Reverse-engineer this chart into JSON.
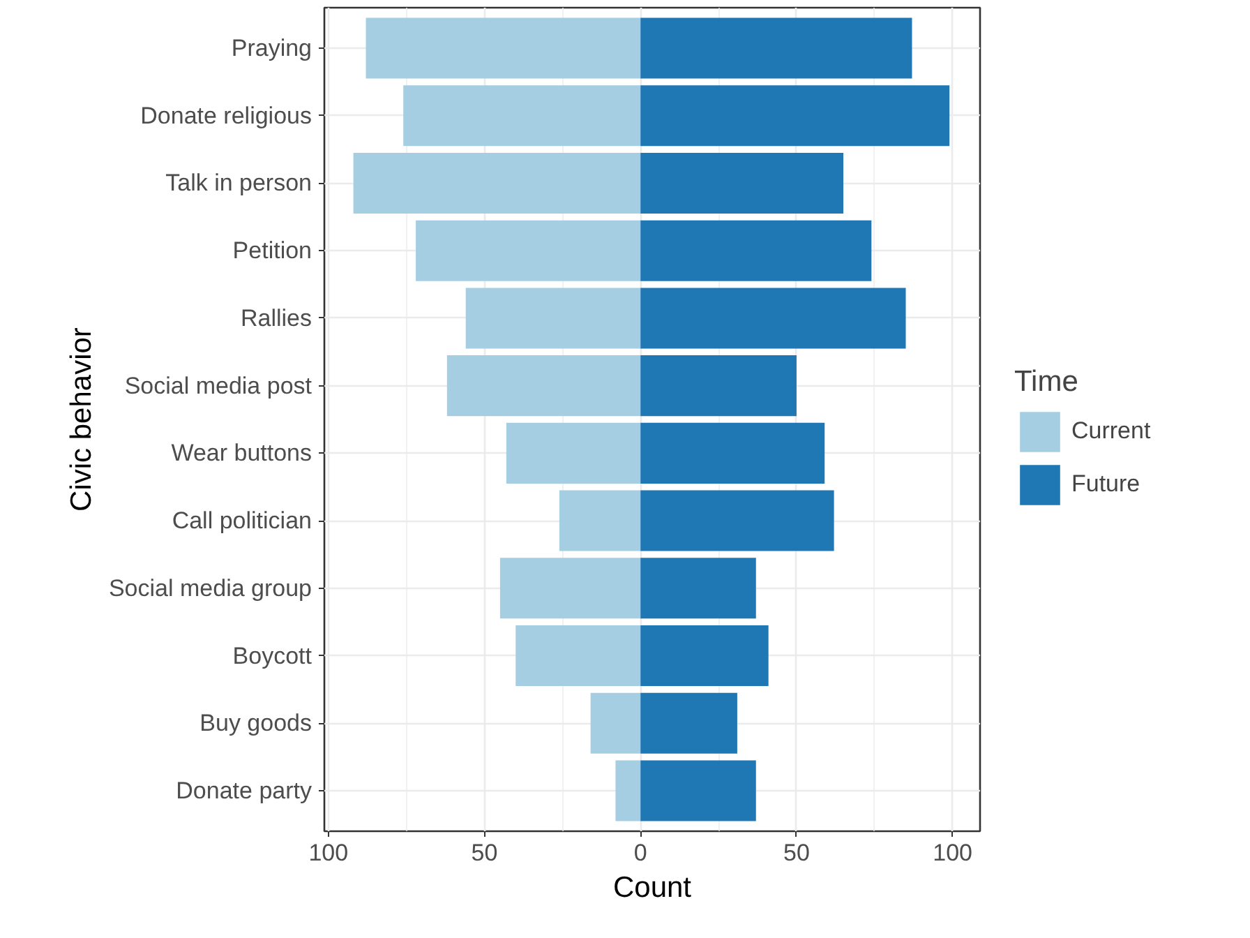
{
  "chart_data": {
    "type": "bar",
    "orientation": "horizontal",
    "stacked": true,
    "xlabel": "Count",
    "ylabel": "Civic behavior",
    "legend_title": "Time",
    "legend": "right",
    "grid": true,
    "categories": [
      "Praying",
      "Donate religious",
      "Talk in person",
      "Petition",
      "Rallies",
      "Social media post",
      "Wear buttons",
      "Call politician",
      "Social media group",
      "Boycott",
      "Buy goods",
      "Donate party"
    ],
    "series": [
      {
        "name": "Current",
        "color": "#a6cee3",
        "values": [
          -88,
          -76,
          -92,
          -72,
          -56,
          -62,
          -43,
          -26,
          -45,
          -40,
          -16,
          -8
        ]
      },
      {
        "name": "Future",
        "color": "#1f78b4",
        "values": [
          87,
          99,
          65,
          74,
          85,
          50,
          59,
          62,
          37,
          41,
          31,
          37
        ]
      }
    ],
    "xlim": [
      -101.3,
      108.8
    ],
    "xticks": [
      {
        "value": -100,
        "label": "100"
      },
      {
        "value": -50,
        "label": "50"
      },
      0,
      50,
      100
    ]
  }
}
